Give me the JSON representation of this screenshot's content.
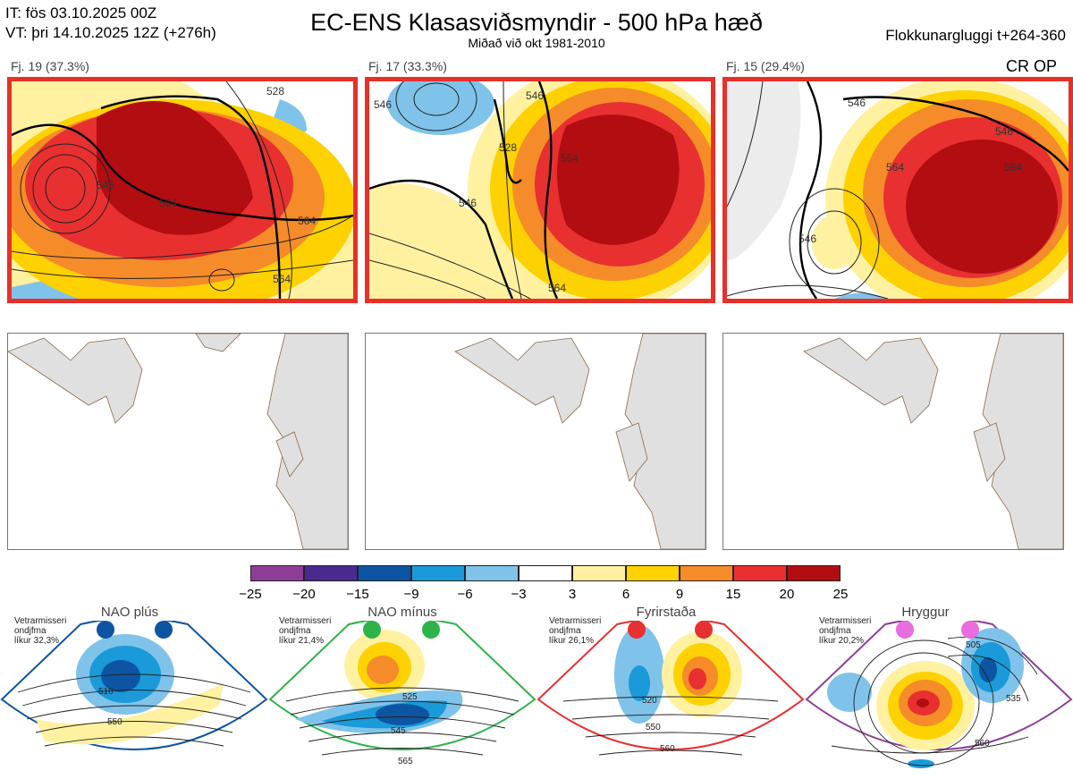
{
  "header": {
    "it_line": "IT: fös 03.10.2025 00Z",
    "vt_line": "VT: þri 14.10.2025 12Z  (+276h)",
    "title": "EC-ENS Klasasviðsmyndir - 500 hPa hæð",
    "subtitle": "Miðað við okt 1981-2010",
    "window": "Flokkunargluggi t+264-360",
    "crop": "CR OP"
  },
  "clusters": [
    {
      "label": "Fj. 19 (37.3%)",
      "contour_labels": [
        "546",
        "564",
        "528",
        "564",
        "564"
      ]
    },
    {
      "label": "Fj. 17 (33.3%)",
      "contour_labels": [
        "546",
        "528",
        "546",
        "564",
        "564",
        "546"
      ]
    },
    {
      "label": "Fj. 15 (29.4%)",
      "contour_labels": [
        "546",
        "546",
        "564",
        "564",
        "546"
      ]
    }
  ],
  "colorbar": {
    "colors": [
      "#8e3e98",
      "#4a2a8f",
      "#0d55a3",
      "#1a9ad8",
      "#7fc3ea",
      "#ffffff",
      "#fff1a0",
      "#fdd200",
      "#f68b2a",
      "#e83030",
      "#b20d10"
    ],
    "ticks": [
      "−25",
      "−20",
      "−15",
      "−9",
      "−6",
      "−3",
      "3",
      "6",
      "9",
      "15",
      "20",
      "25"
    ]
  },
  "regimes": [
    {
      "name": "NAO plús",
      "info_line1": "Vetrarmisseri",
      "info_line2": "ondjfma",
      "info_line3": "líkur 32,3%",
      "color": "#0d55a3",
      "labels": [
        "510",
        "550"
      ]
    },
    {
      "name": "NAO mínus",
      "info_line1": "Vetrarmisseri",
      "info_line2": "ondjfma",
      "info_line3": "líkur 21,4%",
      "color": "#2db34a",
      "labels": [
        "525",
        "545",
        "565"
      ]
    },
    {
      "name": "Fyrirstaða",
      "info_line1": "Vetrarmisseri",
      "info_line2": "ondjfma",
      "info_line3": "líkur 26,1%",
      "color": "#e83030",
      "labels": [
        "520",
        "550",
        "560"
      ]
    },
    {
      "name": "Hryggur",
      "info_line1": "Vetrarmisseri",
      "info_line2": "ondjfma",
      "info_line3": "líkur 20,2%",
      "color": "#e96ce0",
      "labels": [
        "505",
        "535",
        "560"
      ]
    }
  ]
}
